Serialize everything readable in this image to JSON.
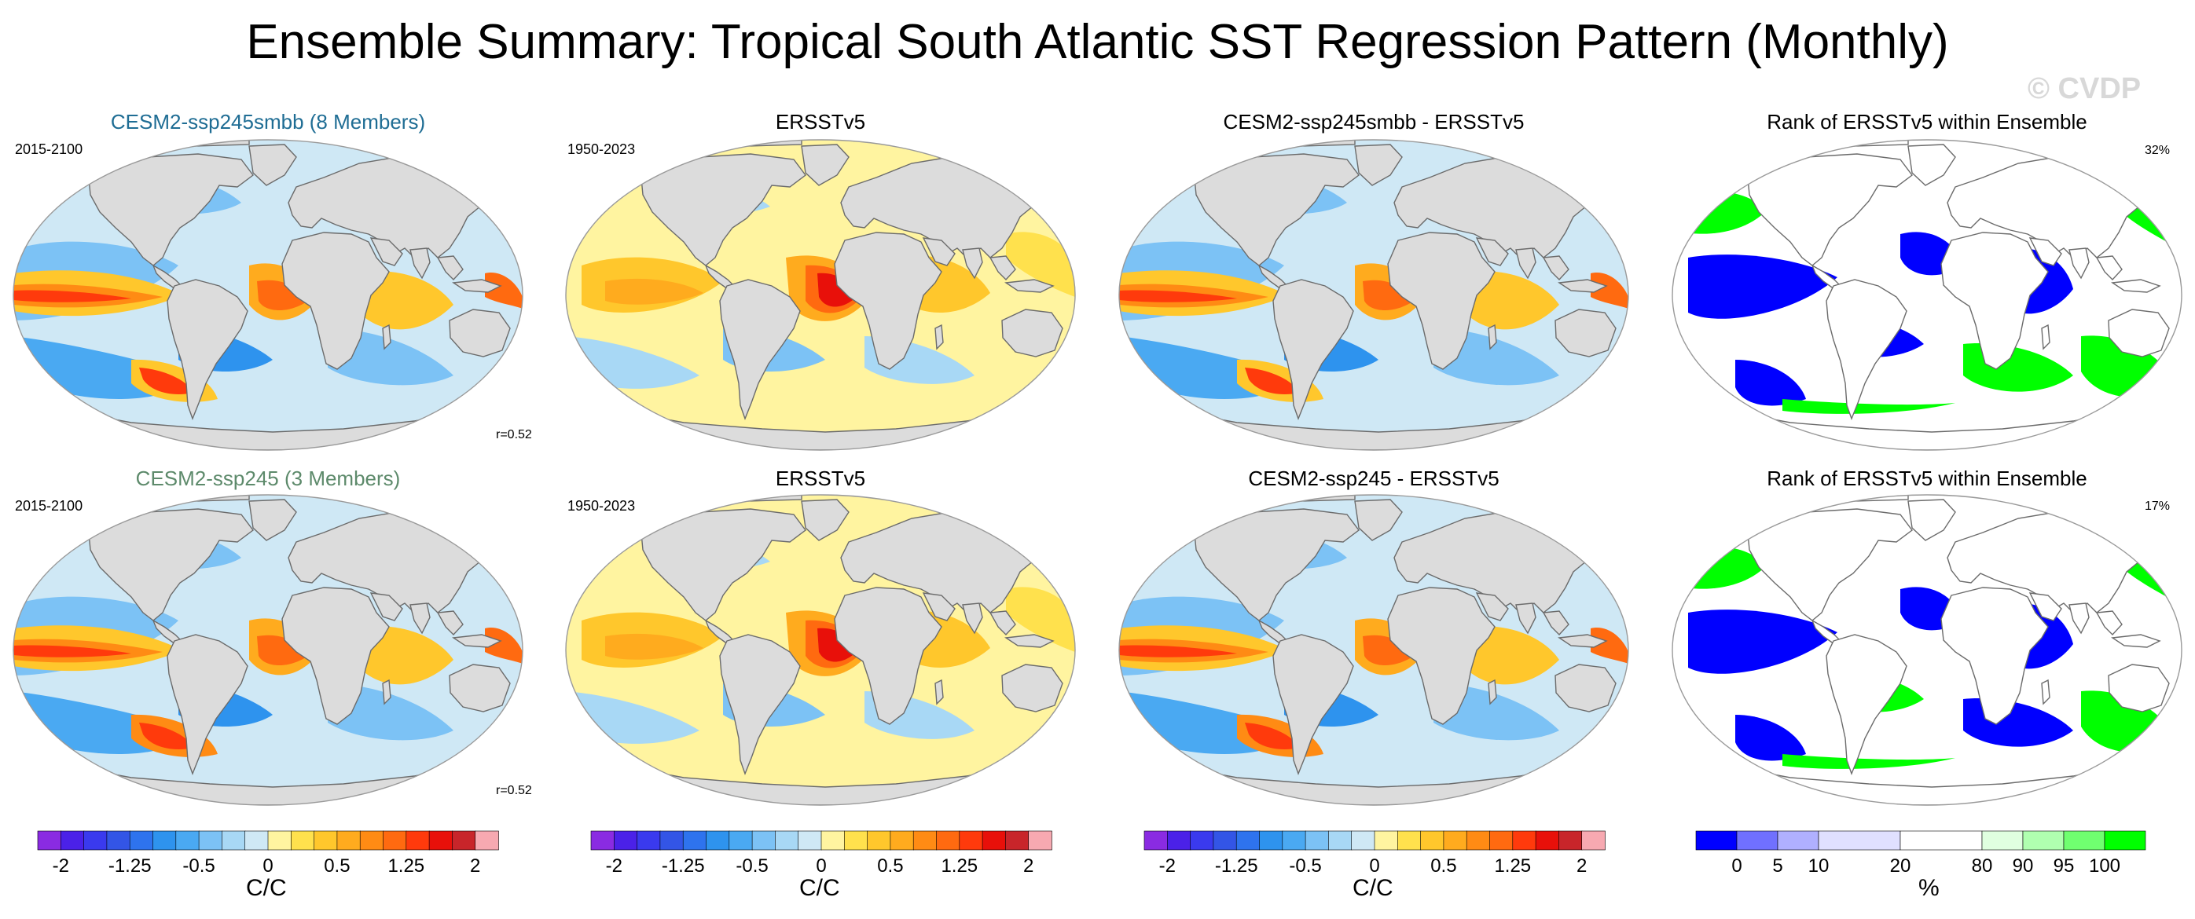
{
  "title": "Ensemble Summary: Tropical South Atlantic SST Regression Pattern (Monthly)",
  "watermark": "© CVDP",
  "colors": {
    "title_cesm2_smbb": "#1f6d94",
    "title_cesm2_ssp245": "#5d8a6b",
    "land": "#dcdcdc",
    "coast": "#6b6b6b",
    "rank_low": "#0000ff",
    "rank_high": "#00ff00"
  },
  "rows": [
    {
      "panels": [
        {
          "title": "CESM2-ssp245smbb (8 Members)",
          "period": "2015-2100",
          "corr": "r=0.52",
          "kind": "model"
        },
        {
          "title": "ERSSTv5",
          "period": "1950-2023",
          "kind": "obs"
        },
        {
          "title": "CESM2-ssp245smbb - ERSSTv5",
          "kind": "diff"
        },
        {
          "title": "Rank of ERSSTv5 within Ensemble",
          "pct": "32%",
          "kind": "rank"
        }
      ]
    },
    {
      "panels": [
        {
          "title": "CESM2-ssp245 (3 Members)",
          "period": "2015-2100",
          "corr": "r=0.52",
          "kind": "model"
        },
        {
          "title": "ERSSTv5",
          "period": "1950-2023",
          "kind": "obs"
        },
        {
          "title": "CESM2-ssp245 - ERSSTv5",
          "kind": "diff"
        },
        {
          "title": "Rank of ERSSTv5 within Ensemble",
          "pct": "17%",
          "kind": "rank"
        }
      ]
    }
  ],
  "colorbars": [
    {
      "label": "C/C",
      "ticks": [
        "-2",
        "-1.25",
        "-0.5",
        "0",
        "0.5",
        "1.25",
        "2"
      ]
    },
    {
      "label": "C/C",
      "ticks": [
        "-2",
        "-1.25",
        "-0.5",
        "0",
        "0.5",
        "1.25",
        "2"
      ]
    },
    {
      "label": "C/C",
      "ticks": [
        "-2",
        "-1.25",
        "-0.5",
        "0",
        "0.5",
        "1.25",
        "2"
      ]
    },
    {
      "label": "%",
      "ticks": [
        "0",
        "5",
        "10",
        "20",
        "80",
        "90",
        "95",
        "100"
      ]
    }
  ],
  "sst_palette": [
    "#8a2be2",
    "#4b21e8",
    "#3a3aee",
    "#3355e6",
    "#2e73ee",
    "#2e93ee",
    "#4aa9f2",
    "#7cc2f5",
    "#a8d8f5",
    "#cfe8f5",
    "#fff4a0",
    "#ffe14d",
    "#ffc72c",
    "#ffab1e",
    "#ff8b14",
    "#ff6a10",
    "#ff3a0c",
    "#e8100a",
    "#c8252a",
    "#f7a9b1"
  ],
  "rank_palette": [
    "#0000ff",
    "#7070ff",
    "#b0b0ff",
    "#e0e0ff",
    "#ffffff",
    "#e0ffe0",
    "#b0ffb0",
    "#70ff70",
    "#00ff00"
  ]
}
